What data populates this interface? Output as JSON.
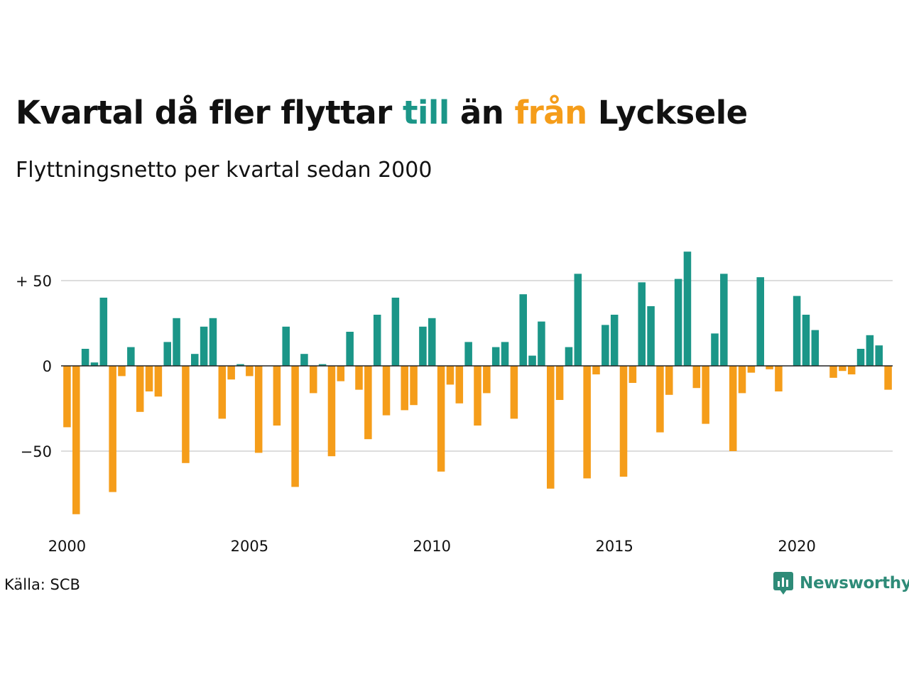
{
  "title": {
    "part1": "Kvartal då fler flyttar ",
    "highlight_in": "till",
    "part2": " än ",
    "highlight_out": "från",
    "part3": " Lycksele"
  },
  "subtitle": "Flyttningsnetto per kvartal sedan 2000",
  "source": "Källa: SCB",
  "brand": {
    "name": "Newsworthy",
    "icon": "newsworthy-logo-icon"
  },
  "colors": {
    "positive": "#1b9688",
    "negative": "#f59d1a",
    "gridline": "#dddddd",
    "zeroline": "#222222",
    "brand": "#2e8b78"
  },
  "chart_data": {
    "type": "bar",
    "title": "Kvartal då fler flyttar till än från Lycksele",
    "subtitle": "Flyttningsnetto per kvartal sedan 2000",
    "xlabel": "",
    "ylabel": "",
    "x_start": "2000-Q1",
    "xticks": [
      "2000",
      "2005",
      "2010",
      "2015",
      "2020"
    ],
    "yticks": [
      {
        "value": 50,
        "label": "+ 50"
      },
      {
        "value": 0,
        "label": "0"
      },
      {
        "value": -50,
        "label": "−50"
      }
    ],
    "ylim": [
      -90,
      70
    ],
    "grid": true,
    "values": [
      -36,
      -87,
      10,
      2,
      40,
      -74,
      -6,
      11,
      -27,
      -15,
      -18,
      14,
      28,
      -57,
      7,
      23,
      28,
      -31,
      -8,
      1,
      -6,
      -51,
      0,
      -35,
      23,
      -71,
      7,
      -16,
      1,
      -53,
      -9,
      20,
      -14,
      -43,
      30,
      -29,
      40,
      -26,
      -23,
      23,
      28,
      -62,
      -11,
      -22,
      14,
      -35,
      -16,
      11,
      14,
      -31,
      42,
      6,
      26,
      -72,
      -20,
      11,
      54,
      -66,
      -5,
      24,
      30,
      -65,
      -10,
      49,
      35,
      -39,
      -17,
      51,
      67,
      -13,
      -34,
      19,
      54,
      -50,
      -16,
      -4,
      52,
      -2,
      -15,
      0,
      41,
      30,
      21,
      0,
      -7,
      -3,
      -5,
      10,
      18,
      12,
      -14
    ]
  }
}
